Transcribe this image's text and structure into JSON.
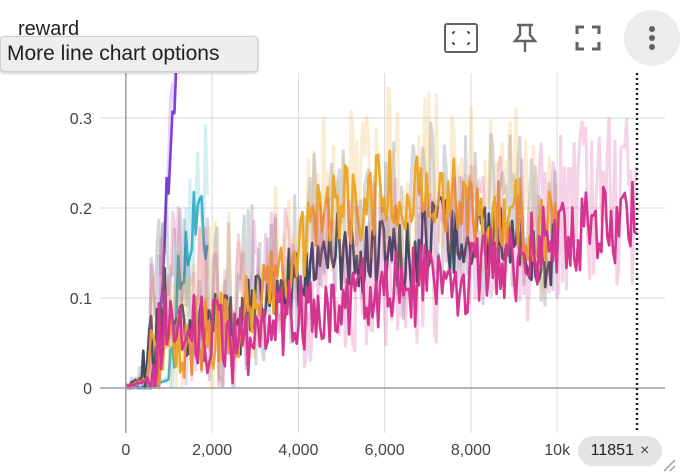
{
  "chart_title": "reward",
  "tooltip_text": "More line chart options",
  "step_chip": {
    "value": "11851",
    "close": "×"
  },
  "toolbar": {
    "fit_icon": "fit-domain-icon",
    "pin_icon": "pin-icon",
    "fullscreen_icon": "fullscreen-icon",
    "more_icon": "more-vert-icon"
  },
  "colors": {
    "series_purple": "#7e3fd9",
    "series_cyan": "#3fb3c7",
    "series_navy": "#3f4a63",
    "series_orange": "#eca62a",
    "series_pink": "#d63491",
    "grid": "#d9d9d9",
    "axis": "#9aa0a6"
  },
  "chart_data": {
    "type": "line",
    "xlim": [
      -600,
      12500
    ],
    "ylim": [
      -0.05,
      0.35
    ],
    "x_ticks": [
      0,
      2000,
      4000,
      6000,
      8000,
      10000
    ],
    "x_tick_labels": [
      "0",
      "2,000",
      "4,000",
      "6,000",
      "8,000",
      "10k"
    ],
    "y_ticks": [
      0,
      0.1,
      0.2,
      0.3
    ],
    "y_tick_labels": [
      "0",
      "0.1",
      "0.2",
      "0.3"
    ],
    "step_marker": 11851,
    "grid": true,
    "smoothed_with_raw_shadow": true,
    "series": [
      {
        "color": "#7e3fd9",
        "x": [
          0,
          150,
          300,
          450,
          600,
          700,
          800,
          850,
          900,
          950,
          1000,
          1050,
          1100,
          1150,
          1200
        ],
        "y": [
          0,
          0,
          0,
          0,
          0,
          0.01,
          0.05,
          0.12,
          0.18,
          0.22,
          0.26,
          0.3,
          0.33,
          0.35,
          0.35
        ]
      },
      {
        "color": "#3fb3c7",
        "x": [
          0,
          200,
          400,
          600,
          800,
          1000,
          1100,
          1200,
          1300,
          1400,
          1500,
          1600,
          1700,
          1800,
          1900
        ],
        "y": [
          0,
          0,
          0,
          0,
          0.005,
          0.01,
          0.05,
          0.1,
          0.12,
          0.13,
          0.14,
          0.2,
          0.22,
          0.18,
          0.15
        ]
      },
      {
        "color": "#3f4a63",
        "x": [
          0,
          500,
          1000,
          1500,
          2000,
          2500,
          3000,
          3500,
          4000,
          4500,
          5000,
          5500,
          6000,
          6500,
          7000,
          7500,
          8000,
          8500,
          9000,
          9500,
          10000
        ],
        "y": [
          0,
          0.02,
          0.1,
          0.06,
          0.07,
          0.06,
          0.08,
          0.1,
          0.12,
          0.14,
          0.15,
          0.13,
          0.16,
          0.14,
          0.17,
          0.16,
          0.15,
          0.17,
          0.16,
          0.15,
          0.14
        ]
      },
      {
        "color": "#eca62a",
        "x": [
          0,
          500,
          1000,
          1500,
          2000,
          2500,
          3000,
          3500,
          4000,
          4500,
          5000,
          5500,
          6000,
          6500,
          7000,
          7500,
          8000,
          8500,
          9000,
          9500,
          10000
        ],
        "y": [
          0,
          0.01,
          0.04,
          0.05,
          0.06,
          0.07,
          0.09,
          0.12,
          0.15,
          0.18,
          0.2,
          0.19,
          0.22,
          0.2,
          0.23,
          0.21,
          0.2,
          0.18,
          0.19,
          0.17,
          0.18
        ]
      },
      {
        "color": "#d63491",
        "x": [
          0,
          500,
          1000,
          1500,
          2000,
          2500,
          3000,
          3500,
          4000,
          4500,
          5000,
          5500,
          6000,
          6500,
          7000,
          7500,
          8000,
          8500,
          9000,
          9500,
          10000,
          10500,
          11000,
          11500,
          11851
        ],
        "y": [
          0,
          0.01,
          0.08,
          0.07,
          0.05,
          0.04,
          0.06,
          0.07,
          0.08,
          0.09,
          0.08,
          0.1,
          0.11,
          0.1,
          0.12,
          0.11,
          0.12,
          0.14,
          0.13,
          0.15,
          0.16,
          0.17,
          0.18,
          0.17,
          0.19
        ]
      }
    ]
  }
}
